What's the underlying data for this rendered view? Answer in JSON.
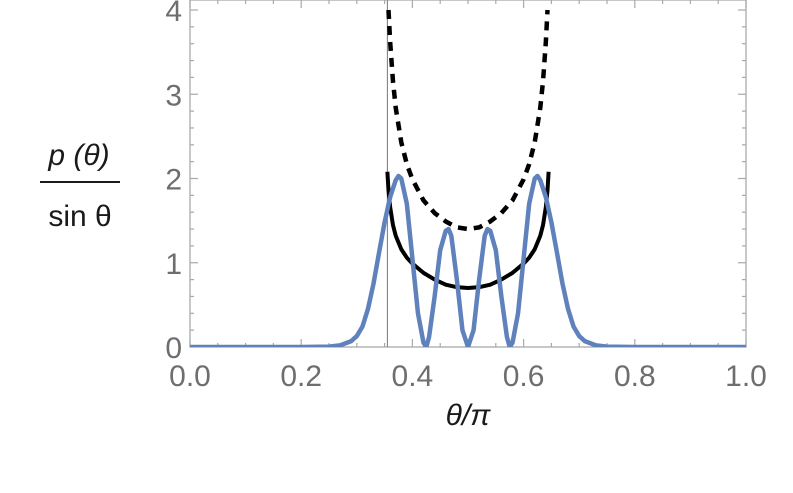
{
  "chart_data": {
    "type": "line",
    "xlabel": "θ/π",
    "ylabel_numerator": "p (θ)",
    "ylabel_denominator": "sin θ",
    "xlim": [
      0,
      1
    ],
    "ylim": [
      0,
      4
    ],
    "x_ticks": [
      "0.0",
      "0.2",
      "0.4",
      "0.6",
      "0.8",
      "1.0"
    ],
    "y_ticks": [
      "0",
      "1",
      "2",
      "3",
      "4"
    ],
    "vertical_line_x": 0.355,
    "colors": {
      "dashed": "#000000",
      "solid_black": "#000000",
      "blue": "#5f82bd",
      "vline": "#777777"
    },
    "series": [
      {
        "style": "dashed",
        "x": [
          0.357,
          0.36,
          0.365,
          0.37,
          0.38,
          0.39,
          0.4,
          0.42,
          0.44,
          0.46,
          0.48,
          0.5,
          0.52,
          0.54,
          0.56,
          0.58,
          0.6,
          0.61,
          0.62,
          0.63,
          0.635,
          0.64,
          0.643
        ],
        "y": [
          4.0,
          3.62,
          3.16,
          2.84,
          2.43,
          2.17,
          1.99,
          1.74,
          1.59,
          1.49,
          1.42,
          1.4,
          1.42,
          1.49,
          1.59,
          1.74,
          1.99,
          2.17,
          2.43,
          2.84,
          3.16,
          3.62,
          4.0
        ]
      },
      {
        "style": "solid",
        "x": [
          0.355,
          0.357,
          0.36,
          0.365,
          0.37,
          0.38,
          0.39,
          0.4,
          0.42,
          0.44,
          0.46,
          0.48,
          0.5,
          0.52,
          0.54,
          0.56,
          0.58,
          0.6,
          0.61,
          0.62,
          0.63,
          0.635,
          0.64,
          0.643,
          0.645
        ],
        "y": [
          2.08,
          1.86,
          1.66,
          1.45,
          1.32,
          1.16,
          1.06,
          0.99,
          0.88,
          0.8,
          0.74,
          0.71,
          0.7,
          0.71,
          0.74,
          0.8,
          0.88,
          0.99,
          1.06,
          1.16,
          1.32,
          1.45,
          1.66,
          1.86,
          2.08
        ]
      },
      {
        "style": "blue",
        "x": [
          0.0,
          0.2,
          0.25,
          0.27,
          0.29,
          0.3,
          0.31,
          0.32,
          0.33,
          0.34,
          0.35,
          0.36,
          0.37,
          0.375,
          0.38,
          0.39,
          0.4,
          0.41,
          0.42,
          0.425,
          0.43,
          0.44,
          0.45,
          0.46,
          0.465,
          0.47,
          0.48,
          0.49,
          0.5,
          0.51,
          0.52,
          0.53,
          0.535,
          0.54,
          0.55,
          0.56,
          0.57,
          0.575,
          0.58,
          0.59,
          0.6,
          0.61,
          0.62,
          0.625,
          0.63,
          0.64,
          0.65,
          0.66,
          0.67,
          0.68,
          0.69,
          0.7,
          0.71,
          0.73,
          0.75,
          0.8,
          1.0
        ],
        "y": [
          0,
          0,
          0.005,
          0.02,
          0.07,
          0.13,
          0.24,
          0.45,
          0.75,
          1.12,
          1.48,
          1.78,
          1.98,
          2.03,
          2.0,
          1.7,
          1.05,
          0.4,
          0.05,
          0.0,
          0.12,
          0.6,
          1.15,
          1.38,
          1.4,
          1.32,
          0.8,
          0.2,
          0.0,
          0.2,
          0.8,
          1.32,
          1.4,
          1.38,
          1.15,
          0.6,
          0.12,
          0.0,
          0.05,
          0.4,
          1.05,
          1.7,
          2.0,
          2.03,
          1.98,
          1.78,
          1.48,
          1.12,
          0.75,
          0.45,
          0.24,
          0.13,
          0.07,
          0.02,
          0.005,
          0,
          0
        ]
      }
    ]
  }
}
